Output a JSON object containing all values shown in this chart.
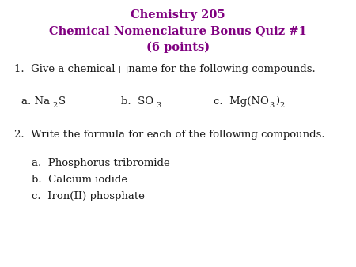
{
  "title_line1": "Chemistry 205",
  "title_line2": "Chemical Nomenclature Bonus Quiz #1",
  "title_line3": "(6 points)",
  "title_color": "#800080",
  "body_color": "#1a1a1a",
  "background_color": "#ffffff",
  "q1_text": "1.  Give a chemical □name for the following compounds.",
  "q2_text": "2.  Write the formula for each of the following compounds.",
  "q2a": "a.  Phosphorus tribromide",
  "q2b": "b.  Calcium iodide",
  "q2c": "c.  Iron(II) phosphate",
  "title_fontsize": 10.5,
  "body_fontsize": 9.5,
  "sub_fontsize": 7.0,
  "figwidth": 4.5,
  "figheight": 3.38,
  "dpi": 100
}
